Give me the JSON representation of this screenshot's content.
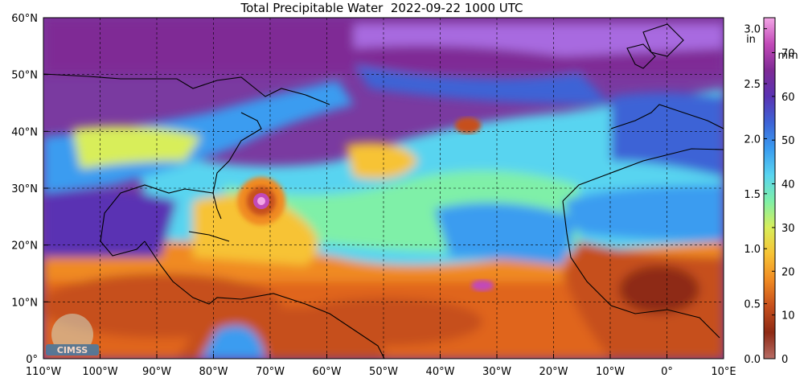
{
  "title": "Total Precipitable Water  2022-09-22 1000 UTC",
  "map": {
    "lat_labels": [
      "60°N",
      "50°N",
      "40°N",
      "30°N",
      "20°N",
      "10°N",
      "0°"
    ],
    "lon_labels": [
      "110°W",
      "100°W",
      "90°W",
      "80°W",
      "70°W",
      "60°W",
      "50°W",
      "40°W",
      "30°W",
      "20°W",
      "10°W",
      "0°",
      "10°E"
    ],
    "extent": {
      "lon_min": -110,
      "lon_max": 10,
      "lat_min": 0,
      "lat_max": 60
    },
    "grid": "dashed lat/lon lines every 10°",
    "background_color": "#7a3aa0"
  },
  "colorbar": {
    "in_unit": "in",
    "mm_unit": "mm",
    "in_ticks": [
      "3.0",
      "2.5",
      "2.0",
      "1.5",
      "1.0",
      "0.5",
      "0.0"
    ],
    "mm_ticks": [
      "70",
      "60",
      "50",
      "40",
      "30",
      "20",
      "10",
      "0"
    ],
    "range_in": [
      0.0,
      3.1
    ],
    "range_mm": [
      0,
      78
    ],
    "colors": [
      "#f3a6e6",
      "#c24ab8",
      "#7f2a95",
      "#5a33b3",
      "#3d63d6",
      "#3a9cf0",
      "#59d4f0",
      "#7ff0a8",
      "#d8ee5a",
      "#f7c335",
      "#f08a22",
      "#c64f1c",
      "#8e2a14",
      "#b76c65"
    ]
  },
  "labels": {
    "logo_text": "CIMSS"
  }
}
